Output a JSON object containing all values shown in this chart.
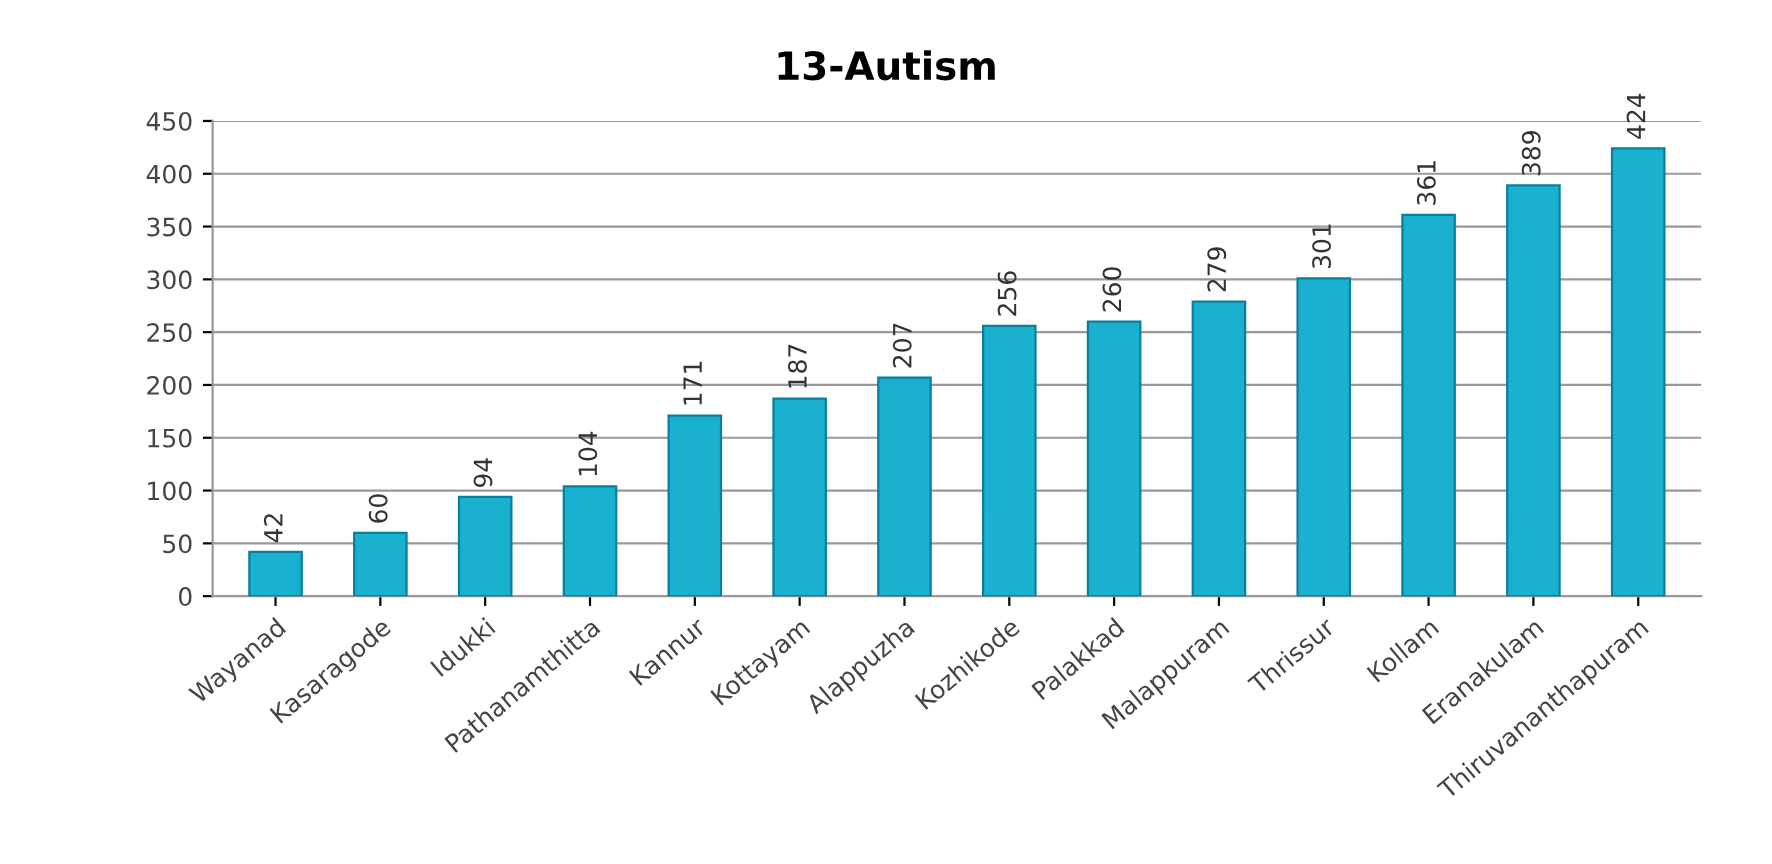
{
  "chart_data": {
    "type": "bar",
    "title": "13-Autism",
    "categories": [
      "Wayanad",
      "Kasaragode",
      "Idukki",
      "Pathanamthitta",
      "Kannur",
      "Kottayam",
      "Alappuzha",
      "Kozhikode",
      "Palakkad",
      "Malappuram",
      "Thrissur",
      "Kollam",
      "Eranakulam",
      "Thiruvananthapuram"
    ],
    "values": [
      42,
      60,
      94,
      104,
      171,
      187,
      207,
      256,
      260,
      279,
      301,
      361,
      389,
      424
    ],
    "color": "#1ab0d0",
    "ylim": [
      0,
      450
    ],
    "yticks": [
      0,
      50,
      100,
      150,
      200,
      250,
      300,
      350,
      400,
      450
    ],
    "grid": "y",
    "data_labels": true
  }
}
